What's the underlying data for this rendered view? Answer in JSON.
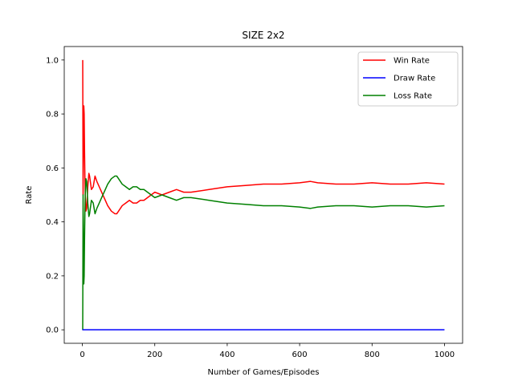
{
  "chart_data": {
    "type": "line",
    "title": "SIZE 2x2",
    "xlabel": "Number of Games/Episodes",
    "ylabel": "Rate",
    "xlim": [
      -50,
      1050
    ],
    "ylim": [
      -0.05,
      1.05
    ],
    "xticks": [
      0,
      200,
      400,
      600,
      800,
      1000
    ],
    "yticks": [
      0.0,
      0.2,
      0.4,
      0.6,
      0.8,
      1.0
    ],
    "xtick_labels": [
      "0",
      "200",
      "400",
      "600",
      "800",
      "1000"
    ],
    "ytick_labels": [
      "0.0",
      "0.2",
      "0.4",
      "0.6",
      "0.8",
      "1.0"
    ],
    "grid": false,
    "legend_position": "top-right",
    "series": [
      {
        "name": "Win Rate",
        "color": "#ff0000",
        "x": [
          1,
          2,
          3,
          4,
          5,
          6,
          7,
          8,
          10,
          12,
          15,
          18,
          20,
          25,
          30,
          35,
          40,
          50,
          60,
          70,
          80,
          90,
          95,
          100,
          110,
          120,
          130,
          140,
          150,
          160,
          170,
          180,
          190,
          200,
          220,
          240,
          260,
          280,
          300,
          350,
          400,
          450,
          500,
          550,
          600,
          630,
          650,
          700,
          750,
          800,
          850,
          900,
          950,
          1000
        ],
        "y": [
          1.0,
          0.5,
          0.67,
          0.83,
          0.8,
          0.67,
          0.57,
          0.5,
          0.44,
          0.45,
          0.53,
          0.58,
          0.57,
          0.52,
          0.53,
          0.57,
          0.55,
          0.52,
          0.49,
          0.46,
          0.44,
          0.43,
          0.43,
          0.44,
          0.46,
          0.47,
          0.48,
          0.47,
          0.47,
          0.48,
          0.48,
          0.49,
          0.5,
          0.51,
          0.5,
          0.51,
          0.52,
          0.51,
          0.51,
          0.52,
          0.53,
          0.535,
          0.54,
          0.54,
          0.545,
          0.55,
          0.545,
          0.54,
          0.54,
          0.545,
          0.54,
          0.54,
          0.545,
          0.54
        ]
      },
      {
        "name": "Draw Rate",
        "color": "#0000ff",
        "x": [
          0,
          1000
        ],
        "y": [
          0.0,
          0.0
        ]
      },
      {
        "name": "Loss Rate",
        "color": "#008000",
        "x": [
          0,
          1,
          2,
          3,
          4,
          5,
          6,
          7,
          8,
          10,
          12,
          15,
          18,
          20,
          25,
          30,
          35,
          40,
          50,
          60,
          70,
          80,
          90,
          95,
          100,
          110,
          120,
          130,
          140,
          150,
          160,
          170,
          180,
          190,
          200,
          220,
          240,
          260,
          280,
          300,
          350,
          400,
          450,
          500,
          550,
          600,
          630,
          650,
          700,
          750,
          800,
          850,
          900,
          950,
          1000
        ],
        "y": [
          0.0,
          0.0,
          0.5,
          0.33,
          0.17,
          0.2,
          0.33,
          0.43,
          0.5,
          0.56,
          0.55,
          0.47,
          0.42,
          0.43,
          0.48,
          0.47,
          0.43,
          0.45,
          0.48,
          0.51,
          0.54,
          0.56,
          0.57,
          0.57,
          0.56,
          0.54,
          0.53,
          0.52,
          0.53,
          0.53,
          0.52,
          0.52,
          0.51,
          0.5,
          0.49,
          0.5,
          0.49,
          0.48,
          0.49,
          0.49,
          0.48,
          0.47,
          0.465,
          0.46,
          0.46,
          0.455,
          0.45,
          0.455,
          0.46,
          0.46,
          0.455,
          0.46,
          0.46,
          0.455,
          0.46
        ]
      }
    ]
  }
}
